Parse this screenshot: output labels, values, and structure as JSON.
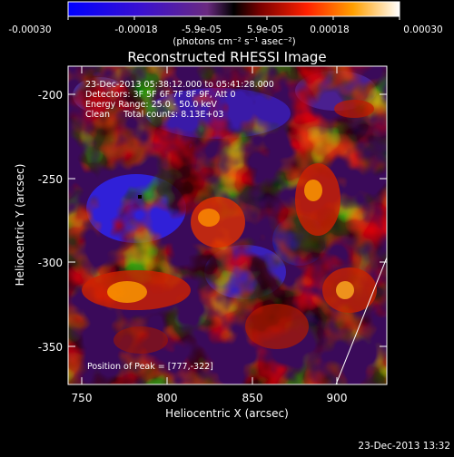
{
  "colorbar": {
    "ticks": [
      "-0.00030",
      "-0.00018",
      "-5.9e-05",
      "5.9e-05",
      "0.00018",
      "0.00030"
    ],
    "units": "(photons cm⁻² s⁻¹ asec⁻²)"
  },
  "plot": {
    "title": "Reconstructed RHESSI Image",
    "xlabel": "Heliocentric X (arcsec)",
    "ylabel": "Heliocentric Y (arcsec)",
    "xticks": [
      "750",
      "800",
      "850",
      "900"
    ],
    "yticks": [
      "-200",
      "-250",
      "-300",
      "-350"
    ],
    "info_lines": [
      "23-Dec-2013 05:38:12.000 to 05:41:28.000",
      "Detectors: 3F 5F 6F 7F 8F 9F, Att 0",
      "Energy Range: 25.0 - 50.0 keV",
      "Clean     Total counts: 8.13E+03"
    ],
    "peak_text": "Position of Peak = [777,-322]"
  },
  "timestamp": "23-Dec-2013 13:32"
}
